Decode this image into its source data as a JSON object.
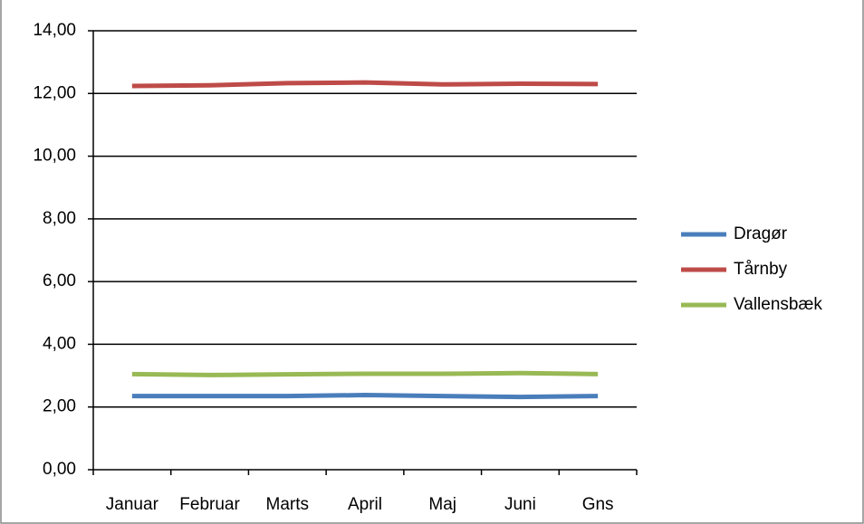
{
  "chart_data": {
    "type": "line",
    "categories": [
      "Januar",
      "Februar",
      "Marts",
      "April",
      "Maj",
      "Juni",
      "Gns"
    ],
    "series": [
      {
        "name": "Dragør",
        "color": "#4a7ebb",
        "values": [
          2.35,
          2.35,
          2.35,
          2.38,
          2.35,
          2.32,
          2.35
        ]
      },
      {
        "name": "Tårnby",
        "color": "#be4b48",
        "values": [
          12.24,
          12.26,
          12.33,
          12.35,
          12.29,
          12.31,
          12.3
        ]
      },
      {
        "name": "Vallensbæk",
        "color": "#98b954",
        "values": [
          3.05,
          3.02,
          3.04,
          3.06,
          3.06,
          3.08,
          3.05
        ]
      }
    ],
    "ylim": [
      0,
      14
    ],
    "yticks": [
      {
        "value": 0,
        "label": "0,00"
      },
      {
        "value": 2,
        "label": "2,00"
      },
      {
        "value": 4,
        "label": "4,00"
      },
      {
        "value": 6,
        "label": "6,00"
      },
      {
        "value": 8,
        "label": "8,00"
      },
      {
        "value": 10,
        "label": "10,00"
      },
      {
        "value": 12,
        "label": "12,00"
      },
      {
        "value": 14,
        "label": "14,00"
      }
    ],
    "grid": true,
    "legend": "right"
  }
}
